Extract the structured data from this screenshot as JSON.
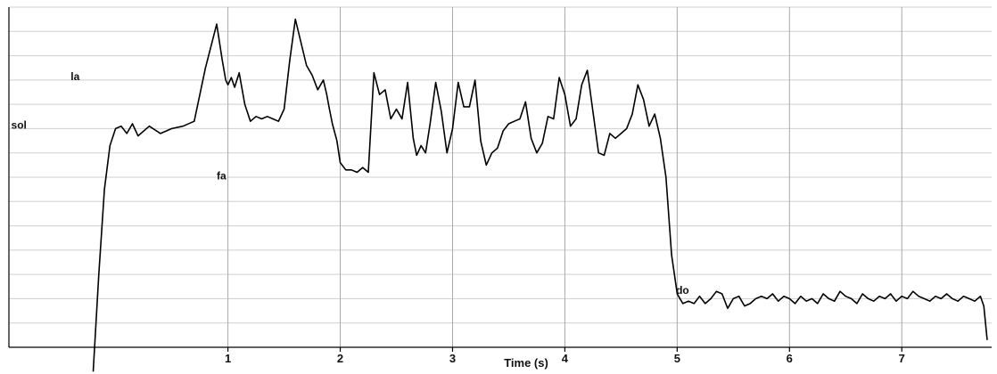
{
  "chart_data": {
    "type": "line",
    "title": "",
    "xlabel": "Time (s)",
    "ylabel": "",
    "xlim": [
      -0.95,
      7.8
    ],
    "ylim": [
      0,
      14
    ],
    "grid": "on",
    "x_ticks": [
      1,
      2,
      3,
      4,
      5,
      6,
      7
    ],
    "annotations": [
      {
        "text": "la",
        "x": -0.4,
        "y": 11.0
      },
      {
        "text": "sol",
        "x": -0.93,
        "y": 9.0
      },
      {
        "text": "fa",
        "x": 0.9,
        "y": 6.9
      },
      {
        "text": "do",
        "x": 4.99,
        "y": 2.2
      }
    ],
    "series": [
      {
        "x": [
          -0.2,
          -0.15,
          -0.1,
          -0.05,
          0.0,
          0.05,
          0.1,
          0.15,
          0.2,
          0.3,
          0.4,
          0.5,
          0.6,
          0.7,
          0.8,
          0.9,
          0.95,
          0.98,
          1.0,
          1.03,
          1.06,
          1.1,
          1.15,
          1.2,
          1.25,
          1.3,
          1.35,
          1.4,
          1.45,
          1.5,
          1.55,
          1.6,
          1.7,
          1.75,
          1.8,
          1.85,
          1.88,
          1.9,
          1.93,
          1.97,
          2.0,
          2.05,
          2.1,
          2.15,
          2.2,
          2.25,
          2.3,
          2.35,
          2.4,
          2.45,
          2.5,
          2.55,
          2.6,
          2.65,
          2.68,
          2.72,
          2.76,
          2.8,
          2.85,
          2.9,
          2.95,
          3.0,
          3.05,
          3.1,
          3.15,
          3.2,
          3.25,
          3.3,
          3.35,
          3.4,
          3.45,
          3.5,
          3.55,
          3.6,
          3.65,
          3.7,
          3.75,
          3.8,
          3.85,
          3.9,
          3.95,
          4.0,
          4.05,
          4.1,
          4.15,
          4.2,
          4.25,
          4.3,
          4.35,
          4.4,
          4.45,
          4.5,
          4.55,
          4.6,
          4.65,
          4.7,
          4.75,
          4.8,
          4.85,
          4.9,
          4.95,
          5.0,
          5.05,
          5.1,
          5.15,
          5.2,
          5.25,
          5.3,
          5.35,
          5.4,
          5.45,
          5.5,
          5.55,
          5.6,
          5.65,
          5.7,
          5.75,
          5.8,
          5.85,
          5.9,
          5.95,
          6.0,
          6.05,
          6.1,
          6.15,
          6.2,
          6.25,
          6.3,
          6.35,
          6.4,
          6.45,
          6.5,
          6.55,
          6.6,
          6.65,
          6.7,
          6.75,
          6.8,
          6.85,
          6.9,
          6.95,
          7.0,
          7.05,
          7.1,
          7.15,
          7.2,
          7.25,
          7.3,
          7.35,
          7.4,
          7.45,
          7.5,
          7.55,
          7.6,
          7.65,
          7.7,
          7.73,
          7.76
        ],
        "y": [
          -1.0,
          3.0,
          6.5,
          8.3,
          9.0,
          9.1,
          8.8,
          9.2,
          8.7,
          9.1,
          8.8,
          9.0,
          9.1,
          9.3,
          11.5,
          13.3,
          11.8,
          11.0,
          10.8,
          11.1,
          10.7,
          11.3,
          10.0,
          9.3,
          9.5,
          9.4,
          9.5,
          9.4,
          9.3,
          9.8,
          11.8,
          13.5,
          11.6,
          11.2,
          10.6,
          11.0,
          10.4,
          9.9,
          9.2,
          8.5,
          7.6,
          7.3,
          7.3,
          7.2,
          7.4,
          7.2,
          11.3,
          10.4,
          10.6,
          9.4,
          9.8,
          9.4,
          10.9,
          8.6,
          7.9,
          8.3,
          8.0,
          9.2,
          10.9,
          9.7,
          8.0,
          9.0,
          10.9,
          9.9,
          9.9,
          11.0,
          8.5,
          7.5,
          8.0,
          8.2,
          8.9,
          9.2,
          9.3,
          9.4,
          10.1,
          8.6,
          8.0,
          8.4,
          9.5,
          9.4,
          11.1,
          10.4,
          9.1,
          9.4,
          10.8,
          11.4,
          9.7,
          8.0,
          7.9,
          8.8,
          8.6,
          8.8,
          9.0,
          9.6,
          10.8,
          10.2,
          9.1,
          9.6,
          8.6,
          7.0,
          3.8,
          2.2,
          1.8,
          1.9,
          1.8,
          2.1,
          1.8,
          2.0,
          2.3,
          2.2,
          1.6,
          2.0,
          2.1,
          1.7,
          1.8,
          2.0,
          2.1,
          2.0,
          2.2,
          1.9,
          2.1,
          2.0,
          1.8,
          2.1,
          1.9,
          2.0,
          1.8,
          2.2,
          2.0,
          1.9,
          2.3,
          2.1,
          2.0,
          1.8,
          2.2,
          2.0,
          1.9,
          2.1,
          2.0,
          2.2,
          1.9,
          2.1,
          2.0,
          2.3,
          2.1,
          2.0,
          1.9,
          2.1,
          2.0,
          2.2,
          2.0,
          1.9,
          2.1,
          2.0,
          1.9,
          2.1,
          1.7,
          0.3
        ]
      }
    ]
  }
}
